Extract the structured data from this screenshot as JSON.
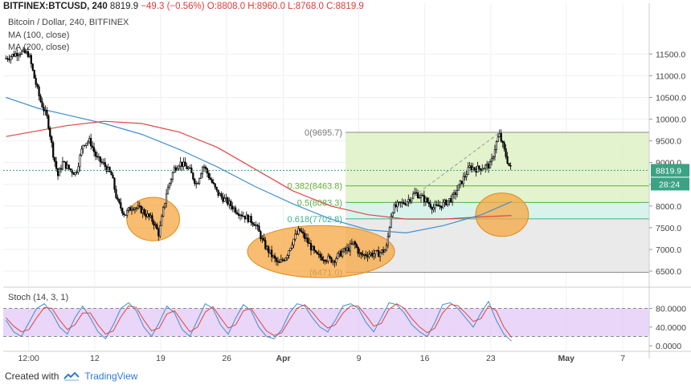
{
  "header": {
    "symbol": "BITFINEX:BTCUSD, 240",
    "last": "8819.9",
    "change": "−49.3 (−0.56%)",
    "ohlc": "O:8808.0 H:8960.0 L:8768.0 C:8819.9"
  },
  "legend": {
    "title": "Bitcoin / Dollar, 240, BITFINEX",
    "ma1": "MA (100, close)",
    "ma2": "MA (200, close)"
  },
  "indicator": {
    "label": "Stoch (14, 3, 1)"
  },
  "footer": {
    "created_with": "Created with",
    "brand": "TradingView"
  },
  "colors": {
    "bull": "#ffffff",
    "bear": "#000000",
    "ma100": "#3f8fd2",
    "ma200": "#e04545",
    "fib_green": "#dff2c8",
    "fib_cyan": "#d4f2ea",
    "fib_grey": "#e6e6e6",
    "highlight": "#f5a742",
    "stoch_bg": "#e2c8f5",
    "stoch_k": "#3f8fd2",
    "stoch_d": "#e04545"
  },
  "chart_data": [
    {
      "type": "candlestick",
      "title": "Bitcoin / Dollar, 240, BITFINEX",
      "x_ticks": [
        {
          "label": "12:00",
          "day": 0
        },
        {
          "label": "12",
          "day": 7
        },
        {
          "label": "19",
          "day": 14
        },
        {
          "label": "26",
          "day": 21
        },
        {
          "label": "Apr",
          "day": 27
        },
        {
          "label": "9",
          "day": 35
        },
        {
          "label": "16",
          "day": 42
        },
        {
          "label": "23",
          "day": 49
        },
        {
          "label": "May",
          "day": 57
        },
        {
          "label": "7",
          "day": 63
        }
      ],
      "y_ticks": [
        11500,
        11000,
        10500,
        10000,
        9500,
        9000,
        8500,
        8000,
        7500,
        7000,
        6500
      ],
      "y_tick_labels": [
        "11500.0",
        "11000.0",
        "10500.0",
        "10000.0",
        "9500.0",
        "9000.0",
        "8500.0",
        "8000.0",
        "7500.0",
        "7000.0",
        "6500.0"
      ],
      "ylim": [
        6150,
        12300
      ],
      "xlim": [
        -2.7,
        65.8
      ],
      "last_price": 8819.9,
      "last_price_label": "8819.9",
      "countdown_label": "28:24",
      "anchors": [
        [
          -2.4,
          11400
        ],
        [
          -1.0,
          11550
        ],
        [
          0.0,
          11500
        ],
        [
          0.6,
          10950
        ],
        [
          1.2,
          10450
        ],
        [
          2.0,
          10000
        ],
        [
          2.6,
          9200
        ],
        [
          3.1,
          8700
        ],
        [
          3.6,
          9000
        ],
        [
          4.3,
          8850
        ],
        [
          5.0,
          8750
        ],
        [
          5.8,
          9450
        ],
        [
          6.5,
          9500
        ],
        [
          7.2,
          9100
        ],
        [
          8.0,
          8950
        ],
        [
          8.8,
          8700
        ],
        [
          9.4,
          8100
        ],
        [
          10.2,
          7800
        ],
        [
          11.0,
          8000
        ],
        [
          12.0,
          7900
        ],
        [
          13.2,
          7650
        ],
        [
          13.8,
          7350
        ],
        [
          14.6,
          8300
        ],
        [
          15.4,
          8850
        ],
        [
          16.0,
          9000
        ],
        [
          17.0,
          8850
        ],
        [
          17.8,
          8500
        ],
        [
          18.5,
          8950
        ],
        [
          19.3,
          8600
        ],
        [
          20.0,
          8300
        ],
        [
          21.0,
          8100
        ],
        [
          22.0,
          7900
        ],
        [
          23.0,
          7750
        ],
        [
          24.0,
          7600
        ],
        [
          25.0,
          7100
        ],
        [
          25.8,
          6850
        ],
        [
          26.5,
          6650
        ],
        [
          27.3,
          6850
        ],
        [
          28.0,
          7200
        ],
        [
          28.7,
          7450
        ],
        [
          29.5,
          7200
        ],
        [
          30.5,
          6850
        ],
        [
          31.5,
          6800
        ],
        [
          32.3,
          6750
        ],
        [
          33.0,
          6900
        ],
        [
          33.8,
          7000
        ],
        [
          34.5,
          7150
        ],
        [
          35.2,
          6850
        ],
        [
          36.0,
          6900
        ],
        [
          37.0,
          6900
        ],
        [
          37.9,
          7000
        ],
        [
          38.5,
          7900
        ],
        [
          39.0,
          8000
        ],
        [
          40.0,
          8100
        ],
        [
          41.0,
          8300
        ],
        [
          42.0,
          8150
        ],
        [
          43.0,
          7950
        ],
        [
          44.0,
          8050
        ],
        [
          45.0,
          8200
        ],
        [
          46.0,
          8600
        ],
        [
          46.8,
          8900
        ],
        [
          47.5,
          8850
        ],
        [
          48.3,
          8900
        ],
        [
          49.0,
          8950
        ],
        [
          49.5,
          9400
        ],
        [
          49.9,
          9650
        ],
        [
          50.4,
          9300
        ],
        [
          50.9,
          8950
        ],
        [
          51.2,
          8820
        ]
      ],
      "ma100": [
        [
          -2.4,
          10500
        ],
        [
          1.0,
          10250
        ],
        [
          4.0,
          10100
        ],
        [
          8.0,
          9900
        ],
        [
          12.0,
          9650
        ],
        [
          16.0,
          9300
        ],
        [
          20.0,
          8900
        ],
        [
          24.0,
          8450
        ],
        [
          28.0,
          8050
        ],
        [
          32.0,
          7700
        ],
        [
          36.0,
          7450
        ],
        [
          40.0,
          7380
        ],
        [
          44.0,
          7550
        ],
        [
          48.0,
          7800
        ],
        [
          51.2,
          8100
        ]
      ],
      "ma200": [
        [
          -2.4,
          9600
        ],
        [
          4.0,
          9850
        ],
        [
          8.0,
          9950
        ],
        [
          12.0,
          9900
        ],
        [
          16.0,
          9700
        ],
        [
          20.0,
          9350
        ],
        [
          24.0,
          8850
        ],
        [
          28.0,
          8350
        ],
        [
          32.0,
          8000
        ],
        [
          36.0,
          7800
        ],
        [
          40.0,
          7700
        ],
        [
          44.0,
          7700
        ],
        [
          48.0,
          7750
        ],
        [
          51.2,
          7780
        ]
      ],
      "fibonacci": {
        "x_start": 33.6,
        "levels": [
          {
            "value": 9695.7,
            "label": "0(9695.7)"
          },
          {
            "value": 8463.8,
            "label": "0.382(8463.8)"
          },
          {
            "value": 8083.3,
            "label": "0.5(8083.3)"
          },
          {
            "value": 7702.8,
            "label": "0.618(7702.8)"
          },
          {
            "value": 6471.0,
            "label": "(6471.0)"
          }
        ]
      },
      "trend_line": {
        "from": [
          38.5,
          7850
        ],
        "to": [
          50.0,
          9700
        ]
      },
      "highlights": [
        {
          "x": 13.2,
          "y": 7700,
          "rx_days": 2.8,
          "ry_price": 500
        },
        {
          "x": 31.0,
          "y": 6950,
          "rx_days": 7.8,
          "ry_price": 600
        },
        {
          "x": 50.2,
          "y": 7800,
          "rx_days": 2.8,
          "ry_price": 500
        }
      ]
    },
    {
      "type": "line",
      "title": "Stoch (14, 3, 1)",
      "y_ticks": [
        80,
        40,
        0
      ],
      "y_tick_labels": [
        "80.0000",
        "40.0000",
        "0.0000"
      ],
      "ylim": [
        -10,
        122
      ],
      "band": [
        20,
        80
      ],
      "series": [
        {
          "name": "%K",
          "values": [
            55,
            30,
            20,
            50,
            80,
            90,
            70,
            40,
            25,
            60,
            85,
            60,
            30,
            15,
            45,
            80,
            92,
            75,
            40,
            20,
            50,
            85,
            70,
            35,
            20,
            55,
            90,
            80,
            45,
            25,
            60,
            88,
            75,
            40,
            20,
            15,
            35,
            70,
            90,
            85,
            60,
            40,
            30,
            55,
            85,
            90,
            80,
            50,
            30,
            60,
            92,
            88,
            70,
            45,
            30,
            20,
            50,
            88,
            92,
            80,
            60,
            40,
            70,
            95,
            55,
            25,
            10
          ]
        },
        {
          "name": "%D",
          "values": [
            60,
            42,
            30,
            35,
            60,
            82,
            80,
            55,
            35,
            45,
            70,
            70,
            45,
            25,
            32,
            62,
            85,
            82,
            55,
            32,
            38,
            68,
            75,
            52,
            30,
            40,
            72,
            84,
            60,
            38,
            45,
            75,
            80,
            55,
            32,
            22,
            28,
            55,
            80,
            88,
            72,
            52,
            38,
            45,
            70,
            85,
            85,
            65,
            42,
            48,
            78,
            90,
            80,
            58,
            40,
            28,
            38,
            70,
            88,
            86,
            70,
            52,
            58,
            85,
            75,
            40,
            18
          ]
        }
      ]
    }
  ]
}
